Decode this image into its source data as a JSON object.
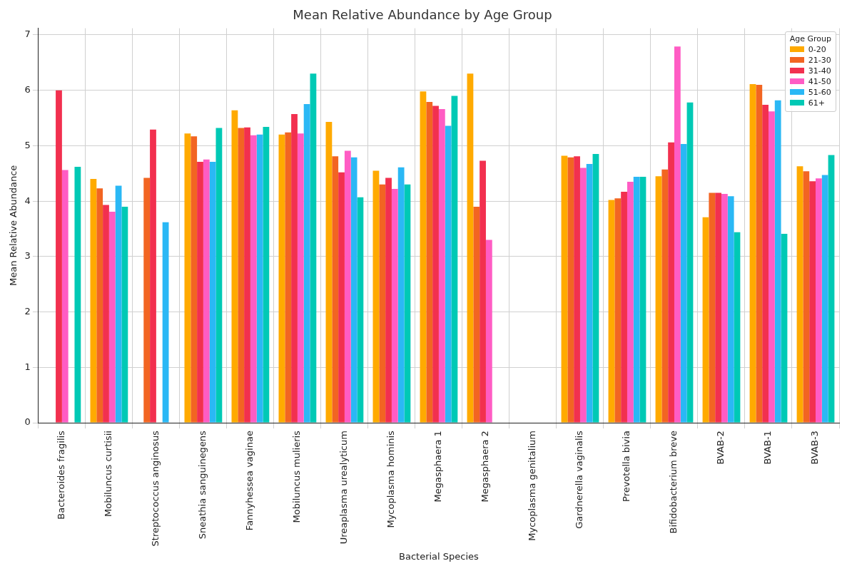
{
  "chart_data": {
    "type": "bar",
    "title": "Mean Relative Abundance by Age Group",
    "xlabel": "Bacterial Species",
    "ylabel": "Mean Relative Abundance",
    "legend_title": "Age Group",
    "legend": "top right",
    "grid": true,
    "categories": [
      "Bacteroides fragilis",
      "Mobiluncus curtisii",
      "Streptococcus anginosus",
      "Sneathia sanguinegens",
      "Fannyhessea vaginae",
      "Mobiluncus mulieris",
      "Ureaplasma urealyticum",
      "Mycoplasma hominis",
      "Megasphaera 1",
      "Megasphaera 2",
      "Mycoplasma genitalium",
      "Gardnerella vaginalis",
      "Prevotella bivia",
      "Bifidobacterium breve",
      "BVAB-2",
      "BVAB-1",
      "BVAB-3"
    ],
    "ylim": [
      0,
      7.12
    ],
    "yticks": [
      0,
      1,
      2,
      3,
      4,
      5,
      6,
      7
    ],
    "series": [
      {
        "name": "0-20",
        "color": "#ffaa00",
        "values": [
          null,
          4.4,
          null,
          5.22,
          5.64,
          5.2,
          5.43,
          4.55,
          5.98,
          6.3,
          null,
          4.82,
          4.02,
          4.45,
          3.71,
          6.11,
          4.63
        ]
      },
      {
        "name": "21-30",
        "color": "#f26522",
        "values": [
          null,
          4.23,
          4.42,
          5.17,
          5.32,
          5.24,
          4.81,
          4.3,
          5.79,
          3.9,
          null,
          4.79,
          4.05,
          4.57,
          4.15,
          6.1,
          4.54
        ]
      },
      {
        "name": "31-40",
        "color": "#f2304f",
        "values": [
          6.0,
          3.93,
          5.29,
          4.71,
          5.33,
          5.57,
          4.52,
          4.42,
          5.72,
          4.73,
          null,
          4.81,
          4.17,
          5.06,
          4.15,
          5.74,
          4.36
        ]
      },
      {
        "name": "41-50",
        "color": "#ff5cc4",
        "values": [
          4.56,
          3.81,
          null,
          4.75,
          5.19,
          5.22,
          4.91,
          4.22,
          5.66,
          3.3,
          null,
          4.6,
          4.35,
          6.79,
          4.13,
          5.62,
          4.41
        ]
      },
      {
        "name": "51-60",
        "color": "#2ab8f5",
        "values": [
          null,
          4.28,
          3.62,
          4.71,
          5.2,
          5.75,
          4.79,
          4.61,
          5.36,
          null,
          null,
          4.67,
          4.44,
          5.03,
          4.09,
          5.82,
          4.47
        ]
      },
      {
        "name": "61+",
        "color": "#00c9b5",
        "values": [
          4.62,
          3.9,
          null,
          5.32,
          5.34,
          6.3,
          4.07,
          4.3,
          5.9,
          null,
          null,
          4.85,
          4.44,
          5.78,
          3.44,
          3.41,
          4.83
        ]
      }
    ]
  }
}
